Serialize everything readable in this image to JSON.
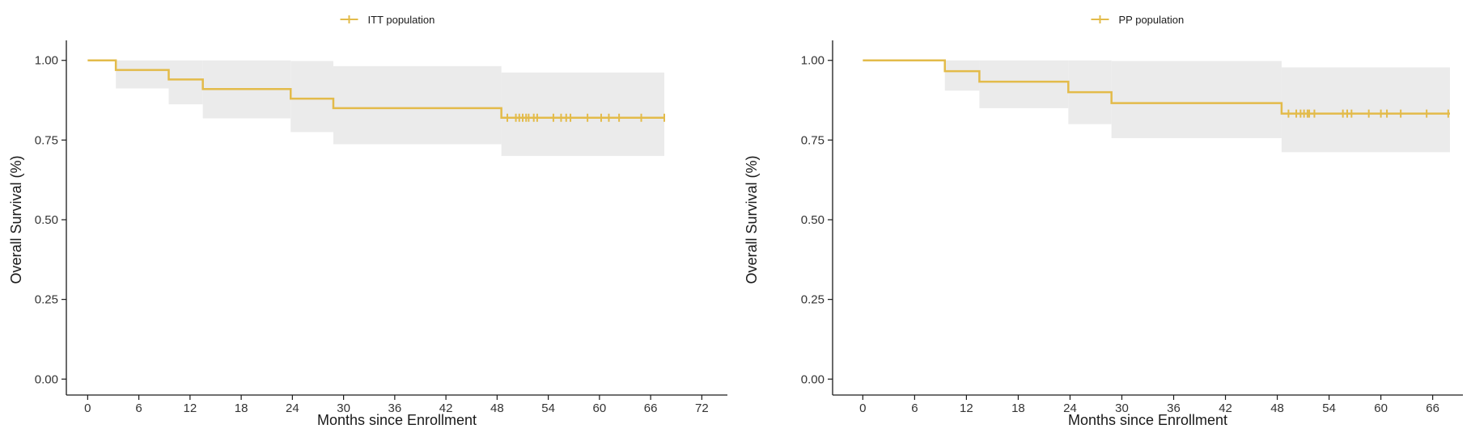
{
  "chart_data": [
    {
      "type": "line",
      "subtype": "kaplan-meier",
      "title": "",
      "legend": {
        "label": "ITT population",
        "position": "top"
      },
      "xlabel": "Months since Enrollment",
      "ylabel": "Overall Survival (%)",
      "xlim": [
        -2.5,
        75
      ],
      "ylim": [
        -0.05,
        1.05
      ],
      "xticks": [
        0,
        6,
        12,
        18,
        24,
        30,
        36,
        42,
        48,
        54,
        60,
        66,
        72
      ],
      "yticks": [
        0.0,
        0.25,
        0.5,
        0.75,
        1.0
      ],
      "ytick_labels": [
        "0.00",
        "0.25",
        "0.50",
        "0.75",
        "1.00"
      ],
      "grid": false,
      "series": [
        {
          "name": "ITT population",
          "color": "#E3BB4A",
          "ci_color": "#EBEBEB",
          "steps": [
            {
              "x0": 0,
              "x1": 3.3,
              "y": 1.0,
              "lo": 1.0,
              "hi": 1.0
            },
            {
              "x0": 3.3,
              "x1": 9.5,
              "y": 0.97,
              "lo": 0.912,
              "hi": 1.0
            },
            {
              "x0": 9.5,
              "x1": 13.5,
              "y": 0.94,
              "lo": 0.862,
              "hi": 1.0
            },
            {
              "x0": 13.5,
              "x1": 23.8,
              "y": 0.91,
              "lo": 0.818,
              "hi": 1.0
            },
            {
              "x0": 23.8,
              "x1": 28.8,
              "y": 0.88,
              "lo": 0.775,
              "hi": 0.998
            },
            {
              "x0": 28.8,
              "x1": 48.5,
              "y": 0.85,
              "lo": 0.737,
              "hi": 0.982
            },
            {
              "x0": 48.5,
              "x1": 67.6,
              "y": 0.82,
              "lo": 0.7,
              "hi": 0.962
            }
          ],
          "censor_x": [
            49.2,
            50.2,
            50.6,
            51.0,
            51.4,
            51.7,
            52.3,
            52.7,
            54.6,
            55.5,
            56.1,
            56.6,
            58.6,
            60.2,
            61.1,
            62.3,
            64.9,
            67.6
          ]
        }
      ]
    },
    {
      "type": "line",
      "subtype": "kaplan-meier",
      "title": "",
      "legend": {
        "label": "PP population",
        "position": "top"
      },
      "xlabel": "Months since Enrollment",
      "ylabel": "Overall Survival (%)",
      "xlim": [
        -3.5,
        69.5
      ],
      "ylim": [
        -0.05,
        1.05
      ],
      "xticks": [
        0,
        6,
        12,
        18,
        24,
        30,
        36,
        42,
        48,
        54,
        60,
        66
      ],
      "yticks": [
        0.0,
        0.25,
        0.5,
        0.75,
        1.0
      ],
      "ytick_labels": [
        "0.00",
        "0.25",
        "0.50",
        "0.75",
        "1.00"
      ],
      "grid": false,
      "series": [
        {
          "name": "PP population",
          "color": "#E3BB4A",
          "ci_color": "#EBEBEB",
          "steps": [
            {
              "x0": 0,
              "x1": 9.5,
              "y": 1.0,
              "lo": 1.0,
              "hi": 1.0
            },
            {
              "x0": 9.5,
              "x1": 13.5,
              "y": 0.966,
              "lo": 0.905,
              "hi": 1.0
            },
            {
              "x0": 13.5,
              "x1": 23.8,
              "y": 0.933,
              "lo": 0.85,
              "hi": 1.0
            },
            {
              "x0": 23.8,
              "x1": 28.8,
              "y": 0.9,
              "lo": 0.8,
              "hi": 1.0
            },
            {
              "x0": 28.8,
              "x1": 48.5,
              "y": 0.866,
              "lo": 0.756,
              "hi": 0.998
            },
            {
              "x0": 48.5,
              "x1": 68.0,
              "y": 0.833,
              "lo": 0.712,
              "hi": 0.978
            }
          ],
          "censor_x": [
            49.3,
            50.2,
            50.7,
            51.1,
            51.5,
            51.7,
            52.3,
            55.6,
            56.1,
            56.6,
            58.6,
            60.0,
            60.7,
            62.3,
            65.3,
            67.8
          ]
        }
      ]
    }
  ]
}
